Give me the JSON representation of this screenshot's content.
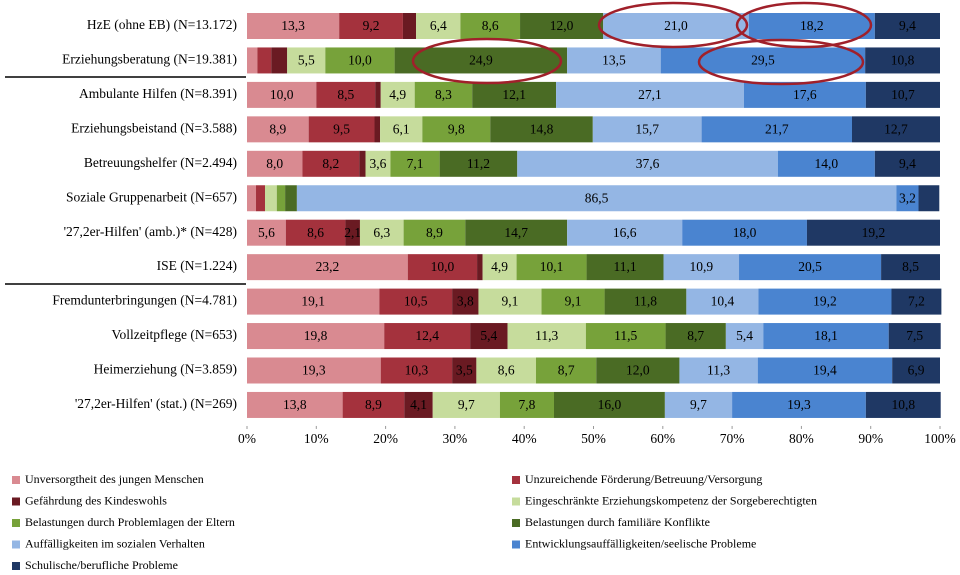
{
  "chart_data": {
    "type": "bar",
    "orientation": "horizontal",
    "stacked": true,
    "categories": [
      "HzE (ohne EB) (N=13.172)",
      "Erziehungsberatung (N=19.381)",
      "Ambulante Hilfen (N=8.391)",
      "Erziehungsbeistand (N=3.588)",
      "Betreuungshelfer (N=2.494)",
      "Soziale Gruppenarbeit (N=657)",
      "'27,2er-Hilfen' (amb.)* (N=428)",
      "ISE (N=1.224)",
      "Fremdunterbringungen (N=4.781)",
      "Vollzeitpflege (N=653)",
      "Heimerziehung (N=3.859)",
      "'27,2er-Hilfen' (stat.) (N=269)"
    ],
    "series": [
      {
        "name": "Unversorgtheit des jungen Menschen",
        "color": "#d98a91",
        "values": [
          13.3,
          1.5,
          10.0,
          8.9,
          8.0,
          1.3,
          5.6,
          23.2,
          19.1,
          19.8,
          19.3,
          13.8
        ],
        "value_labels": [
          "13,3",
          null,
          "10,0",
          "8,9",
          "8,0",
          null,
          "5,6",
          "23,2",
          "19,1",
          "19,8",
          "19,3",
          "13,8"
        ]
      },
      {
        "name": "Unzureichende Förderung/Betreuung/Versorgung",
        "color": "#a4323d",
        "values": [
          9.2,
          2.0,
          8.5,
          9.5,
          8.2,
          1.3,
          8.6,
          10.0,
          10.5,
          12.4,
          10.3,
          8.9
        ],
        "value_labels": [
          "9,2",
          null,
          "8,5",
          "9,5",
          "8,2",
          null,
          "8,6",
          "10,0",
          "10,5",
          "12,4",
          "10,3",
          "8,9"
        ]
      },
      {
        "name": "Gefährdung des Kindeswohls",
        "color": "#6a1a22",
        "values": [
          1.9,
          2.3,
          0.8,
          0.8,
          0.9,
          0,
          2.1,
          0.8,
          3.8,
          5.4,
          3.5,
          4.1
        ],
        "value_labels": [
          null,
          null,
          null,
          null,
          null,
          null,
          "2,1",
          null,
          "3,8",
          "5,4",
          "3,5",
          "4,1"
        ]
      },
      {
        "name": "Eingeschränkte Erziehungskompetenz der Sorgeberechtigten",
        "color": "#c6dc9c",
        "values": [
          6.4,
          5.5,
          4.9,
          6.1,
          3.6,
          1.7,
          6.3,
          4.9,
          9.1,
          11.3,
          8.6,
          9.7
        ],
        "value_labels": [
          "6,4",
          "5,5",
          "4,9",
          "6,1",
          "3,6",
          null,
          "6,3",
          "4,9",
          "9,1",
          "11,3",
          "8,6",
          "9,7"
        ]
      },
      {
        "name": "Belastungen durch Problemlagen der Eltern",
        "color": "#77a23a",
        "values": [
          8.6,
          10.0,
          8.3,
          9.8,
          7.1,
          1.2,
          8.9,
          10.1,
          9.1,
          11.5,
          8.7,
          7.8
        ],
        "value_labels": [
          "8,6",
          "10,0",
          "8,3",
          "9,8",
          "7,1",
          null,
          "8,9",
          "10,1",
          "9,1",
          "11,5",
          "8,7",
          "7,8"
        ]
      },
      {
        "name": "Belastungen durch familiäre Konflikte",
        "color": "#4a6b24",
        "values": [
          12.0,
          24.9,
          12.1,
          14.8,
          11.2,
          1.7,
          14.7,
          11.1,
          11.8,
          8.7,
          12.0,
          16.0
        ],
        "value_labels": [
          "12,0",
          "24,9",
          "12,1",
          "14,8",
          "11,2",
          null,
          "14,7",
          "11,1",
          "11,8",
          "8,7",
          "12,0",
          "16,0"
        ]
      },
      {
        "name": "Auffälligkeiten im sozialen Verhalten",
        "color": "#94b6e4",
        "values": [
          21.0,
          13.5,
          27.1,
          15.7,
          37.6,
          86.5,
          16.6,
          10.9,
          10.4,
          5.4,
          11.3,
          9.7
        ],
        "value_labels": [
          "21,0",
          "13,5",
          "27,1",
          "15,7",
          "37,6",
          "86,5",
          "16,6",
          "10,9",
          "10,4",
          "5,4",
          "11,3",
          "9,7"
        ]
      },
      {
        "name": "Entwicklungsauffälligkeiten/seelische Probleme",
        "color": "#4a84d0",
        "values": [
          18.2,
          29.5,
          17.6,
          21.7,
          14.0,
          3.2,
          18.0,
          20.5,
          19.2,
          18.1,
          19.4,
          19.3
        ],
        "value_labels": [
          "18,2",
          "29,5",
          "17,6",
          "21,7",
          "14,0",
          "3,2",
          "18,0",
          "20,5",
          "19,2",
          "18,1",
          "19,4",
          "19,3"
        ]
      },
      {
        "name": "Schulische/berufliche Probleme",
        "color": "#1f3864",
        "values": [
          9.4,
          10.8,
          10.7,
          12.7,
          9.4,
          3.0,
          19.2,
          8.5,
          7.2,
          7.5,
          6.9,
          10.8
        ],
        "value_labels": [
          "9,4",
          "10,8",
          "10,7",
          "12,7",
          "9,4",
          null,
          "19,2",
          "8,5",
          "7,2",
          "7,5",
          "6,9",
          "10,8"
        ]
      }
    ],
    "xlim": [
      0,
      100
    ],
    "xticks": [
      {
        "value": 0,
        "label": "0%"
      },
      {
        "value": 10,
        "label": "10%"
      },
      {
        "value": 20,
        "label": "20%"
      },
      {
        "value": 30,
        "label": "30%"
      },
      {
        "value": 40,
        "label": "40%"
      },
      {
        "value": 50,
        "label": "50%"
      },
      {
        "value": 60,
        "label": "60%"
      },
      {
        "value": 70,
        "label": "70%"
      },
      {
        "value": 80,
        "label": "80%"
      },
      {
        "value": 90,
        "label": "90%"
      },
      {
        "value": 100,
        "label": "100%"
      }
    ],
    "legend": "bottom"
  }
}
